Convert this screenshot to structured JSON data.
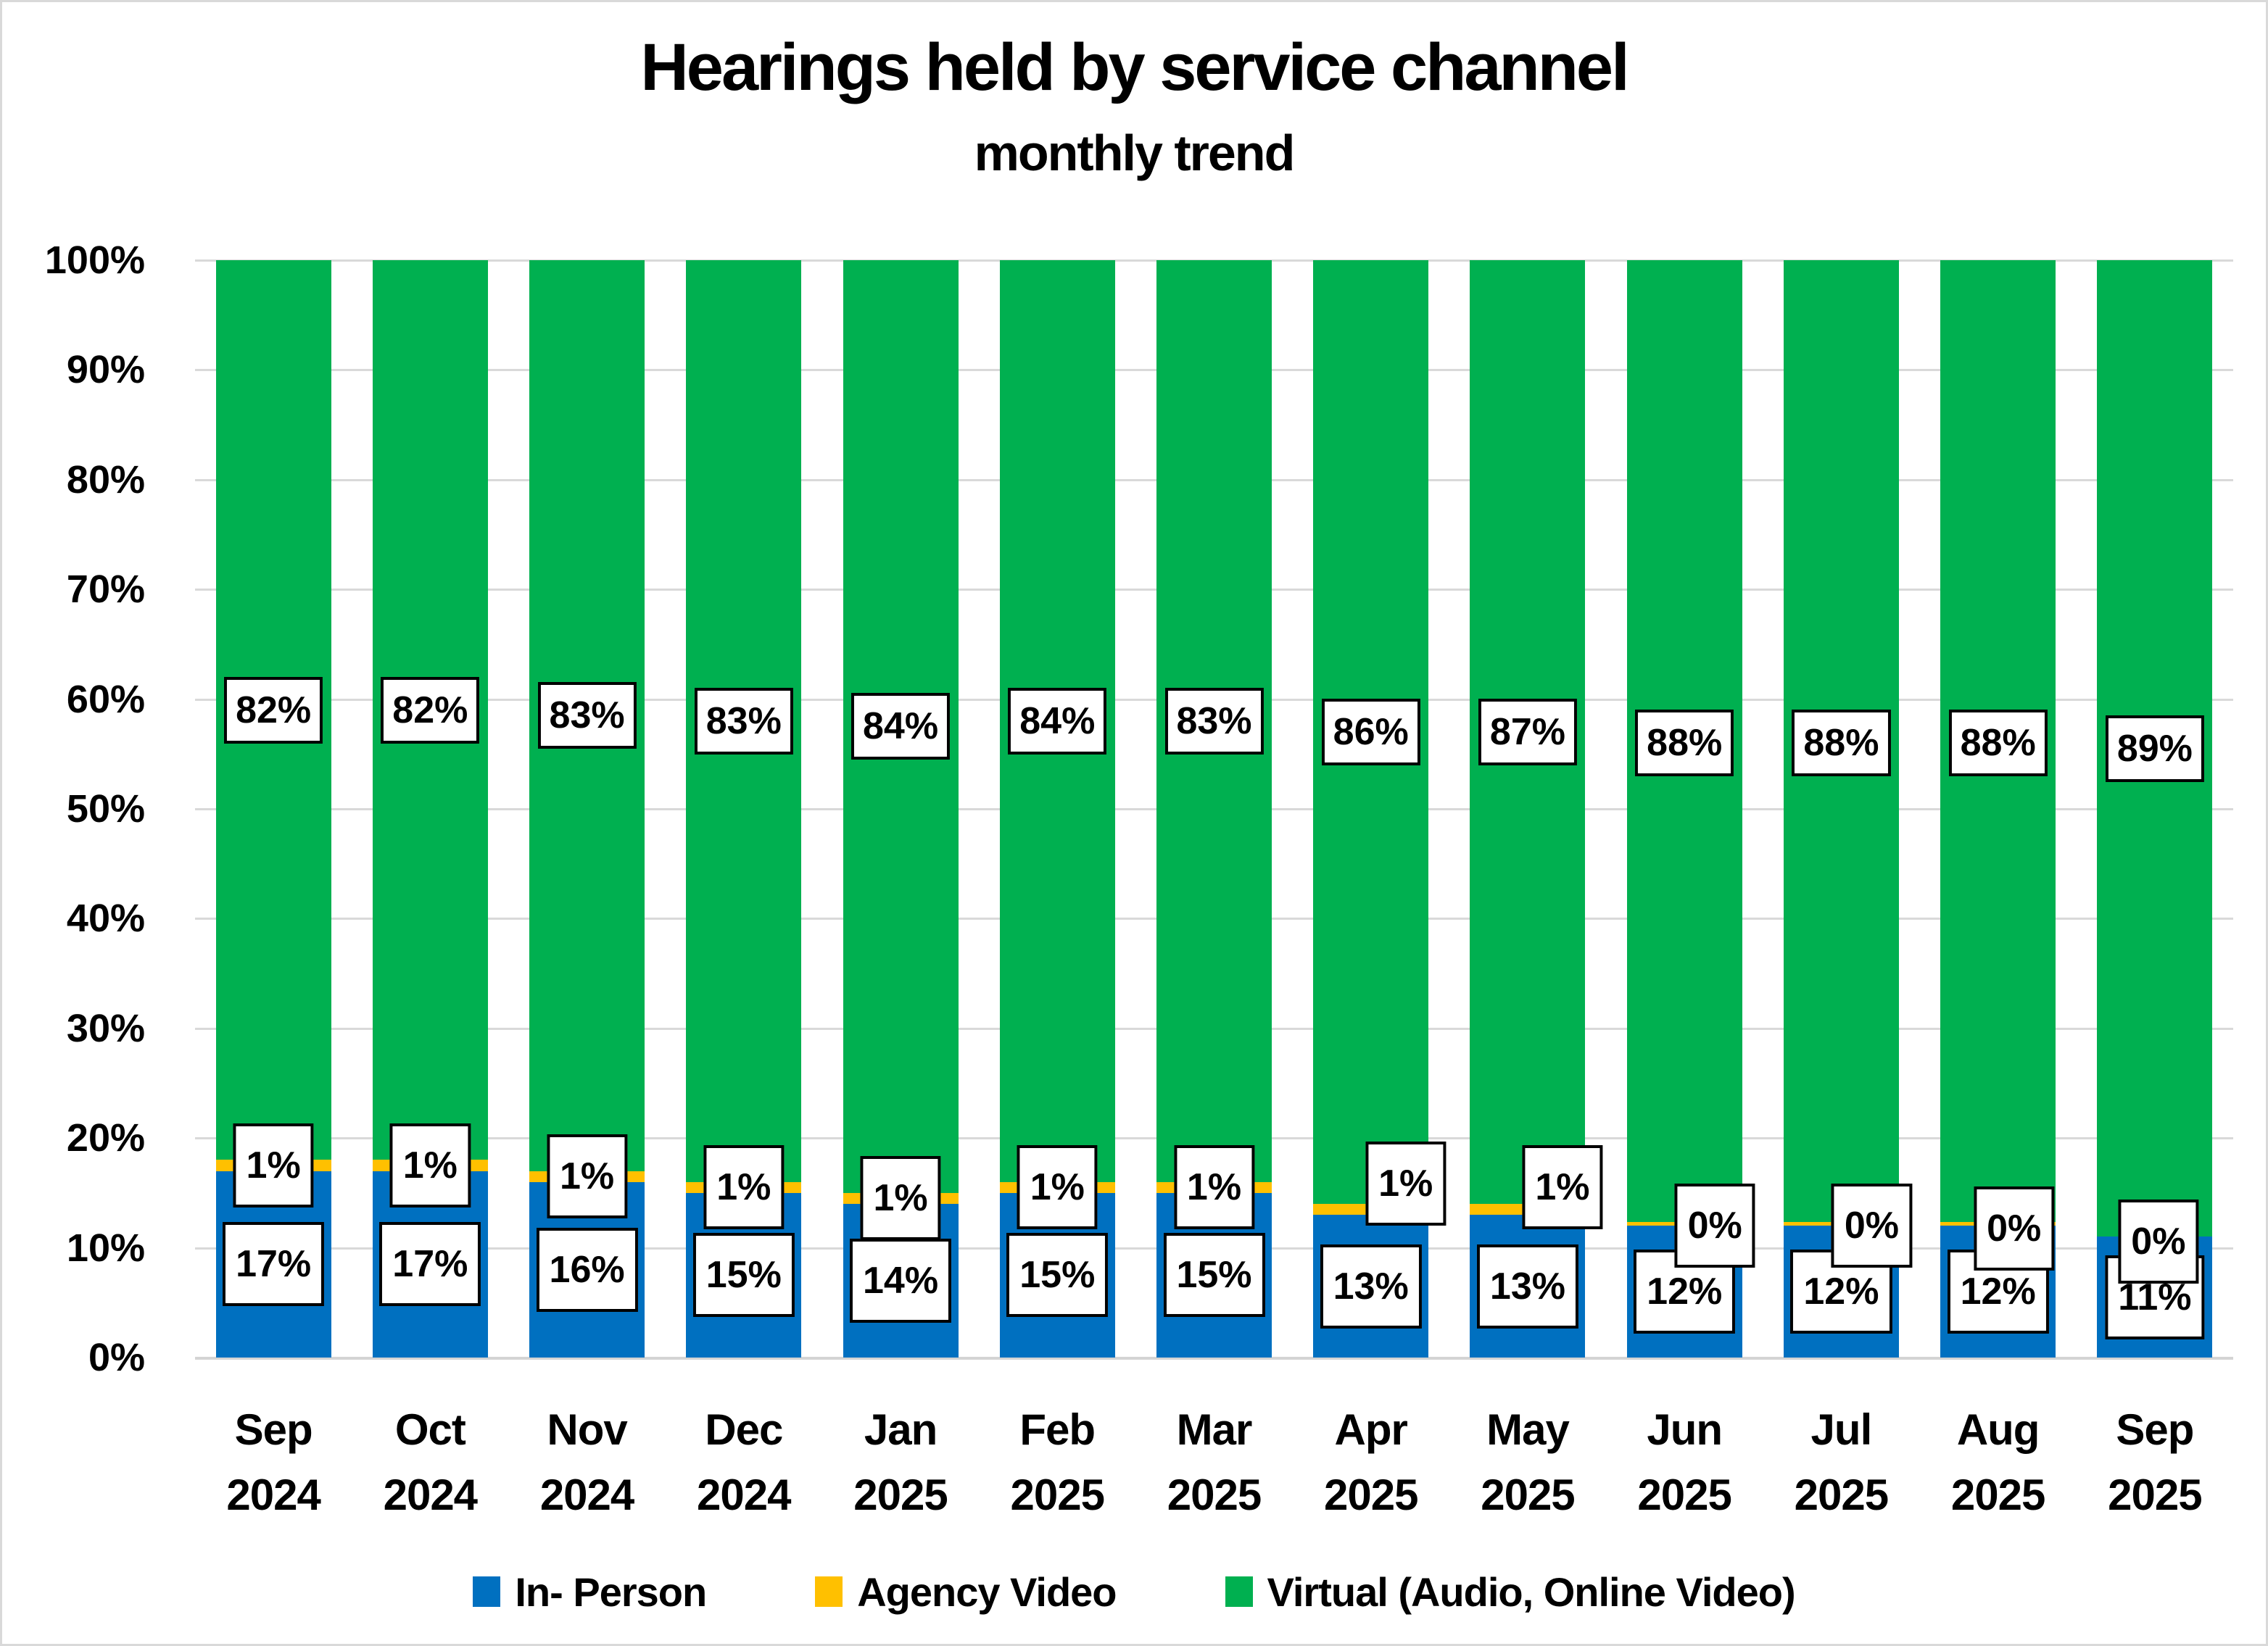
{
  "title": "Hearings held by service channel",
  "subtitle": "monthly trend",
  "y_axis": {
    "tick_labels": [
      "100%",
      "90%",
      "80%",
      "70%",
      "60%",
      "50%",
      "40%",
      "30%",
      "20%",
      "10%",
      "0%"
    ]
  },
  "chart_data": {
    "type": "bar",
    "variant": "100-percent-stacked-column",
    "title": "Hearings held by service channel",
    "subtitle": "monthly trend",
    "categories": [
      "Sep 2024",
      "Oct 2024",
      "Nov 2024",
      "Dec 2024",
      "Jan 2025",
      "Feb 2025",
      "Mar 2025",
      "Apr 2025",
      "May 2025",
      "Jun 2025",
      "Jul 2025",
      "Aug 2025",
      "Sep 2025"
    ],
    "series": [
      {
        "name": "In- Person",
        "color": "#0070C0",
        "values": [
          17,
          17,
          16,
          15,
          14,
          15,
          15,
          13,
          13,
          12,
          12,
          12,
          11
        ]
      },
      {
        "name": "Agency Video",
        "color": "#FFC000",
        "values": [
          1,
          1,
          1,
          1,
          1,
          1,
          1,
          1,
          1,
          0,
          0,
          0,
          0
        ]
      },
      {
        "name": "Virtual (Audio, Online Video)",
        "color": "#00B050",
        "values": [
          82,
          82,
          83,
          83,
          84,
          84,
          83,
          86,
          87,
          88,
          88,
          88,
          89
        ]
      }
    ],
    "data_labels": true,
    "value_suffix": "%",
    "xlabel": "",
    "ylabel": "",
    "ylim": [
      0,
      100
    ],
    "y_tick_step": 10,
    "grid": "horizontal",
    "legend_position": "bottom"
  },
  "colors": {
    "in_person": "#0070C0",
    "agency_video": "#FFC000",
    "virtual": "#00B050",
    "gridline": "#D9D9D9",
    "label_background": "#FFFFFF",
    "label_border": "#000000",
    "background": "#FFFFFF",
    "text": "#000000"
  }
}
